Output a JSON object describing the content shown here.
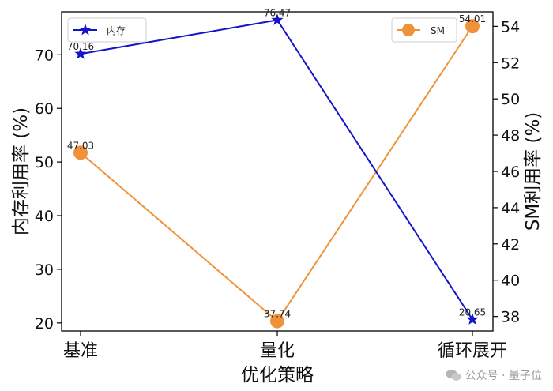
{
  "chart_data": {
    "type": "line",
    "categories": [
      "基准",
      "量化",
      "循环展开"
    ],
    "xlabel": "优化策略",
    "ylabel_left": "内存利用率 (%)",
    "ylabel_right": "SM利用率 (%)",
    "y_left_range": [
      18.5,
      78
    ],
    "y_right_range": [
      37.2,
      54.8
    ],
    "y_left_ticks": [
      20,
      30,
      40,
      50,
      60,
      70
    ],
    "y_right_ticks": [
      38,
      40,
      42,
      44,
      46,
      48,
      50,
      52,
      54
    ],
    "grid": false,
    "series": [
      {
        "name": "内存",
        "axis": "left",
        "color": "#1414c8",
        "marker": "star",
        "values": [
          70.16,
          76.47,
          20.65
        ],
        "labels": [
          "70.16",
          "76.47",
          "20.65"
        ],
        "legend_position": "top-left"
      },
      {
        "name": "SM",
        "axis": "right",
        "color": "#f0923a",
        "marker": "circle",
        "values": [
          47.03,
          37.74,
          54.01
        ],
        "labels": [
          "47.03",
          "37.74",
          "54.01"
        ],
        "legend_position": "top-right"
      }
    ]
  },
  "watermark": {
    "text": "公众号 · 量子位",
    "icon": "wechat-icon"
  }
}
